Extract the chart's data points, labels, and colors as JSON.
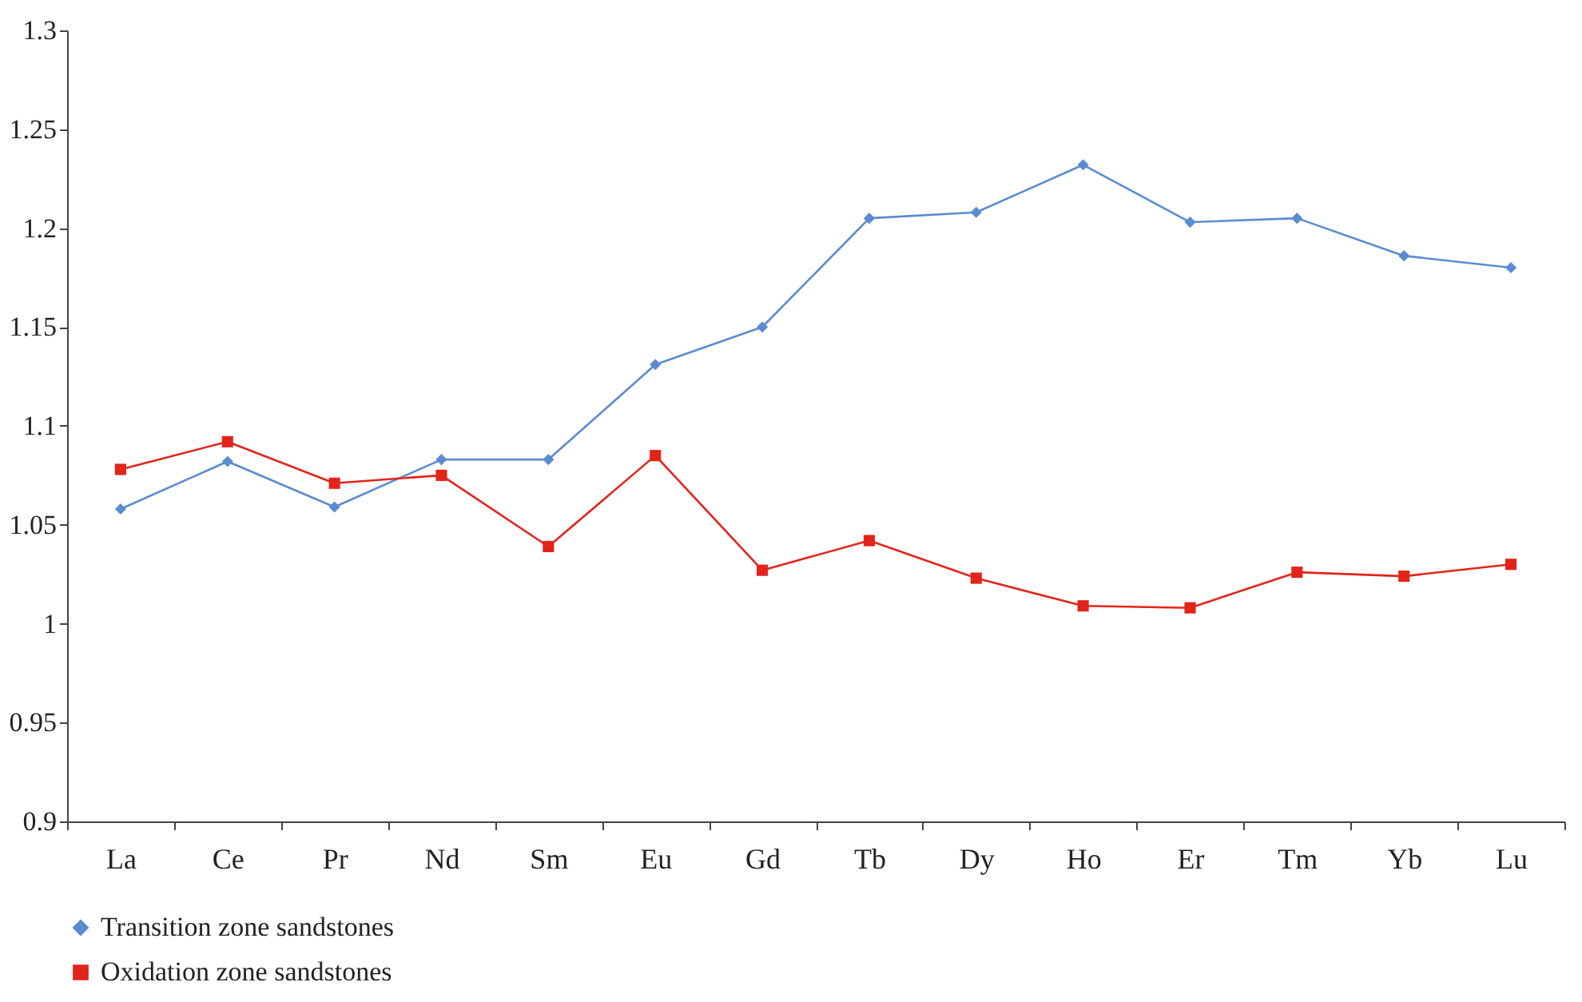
{
  "chart_data": {
    "type": "line",
    "categories": [
      "La",
      "Ce",
      "Pr",
      "Nd",
      "Sm",
      "Eu",
      "Gd",
      "Tb",
      "Dy",
      "Ho",
      "Er",
      "Tm",
      "Yb",
      "Lu"
    ],
    "series": [
      {
        "name": "Transition zone sandstones",
        "color": "#5b8bd0",
        "marker": "diamond",
        "values": [
          1.058,
          1.082,
          1.059,
          1.083,
          1.083,
          1.131,
          1.15,
          1.205,
          1.208,
          1.232,
          1.203,
          1.205,
          1.186,
          1.18
        ]
      },
      {
        "name": "Oxidation zone sandstones",
        "color": "#e3241b",
        "marker": "square",
        "values": [
          1.078,
          1.092,
          1.071,
          1.075,
          1.039,
          1.085,
          1.027,
          1.042,
          1.023,
          1.009,
          1.008,
          1.026,
          1.024,
          1.03
        ]
      }
    ],
    "ylim": [
      0.9,
      1.3
    ],
    "yticks": [
      0.9,
      0.95,
      1,
      1.05,
      1.1,
      1.15,
      1.2,
      1.25,
      1.3
    ],
    "grid": false,
    "legend": "bottom left",
    "line_style": "solid"
  }
}
